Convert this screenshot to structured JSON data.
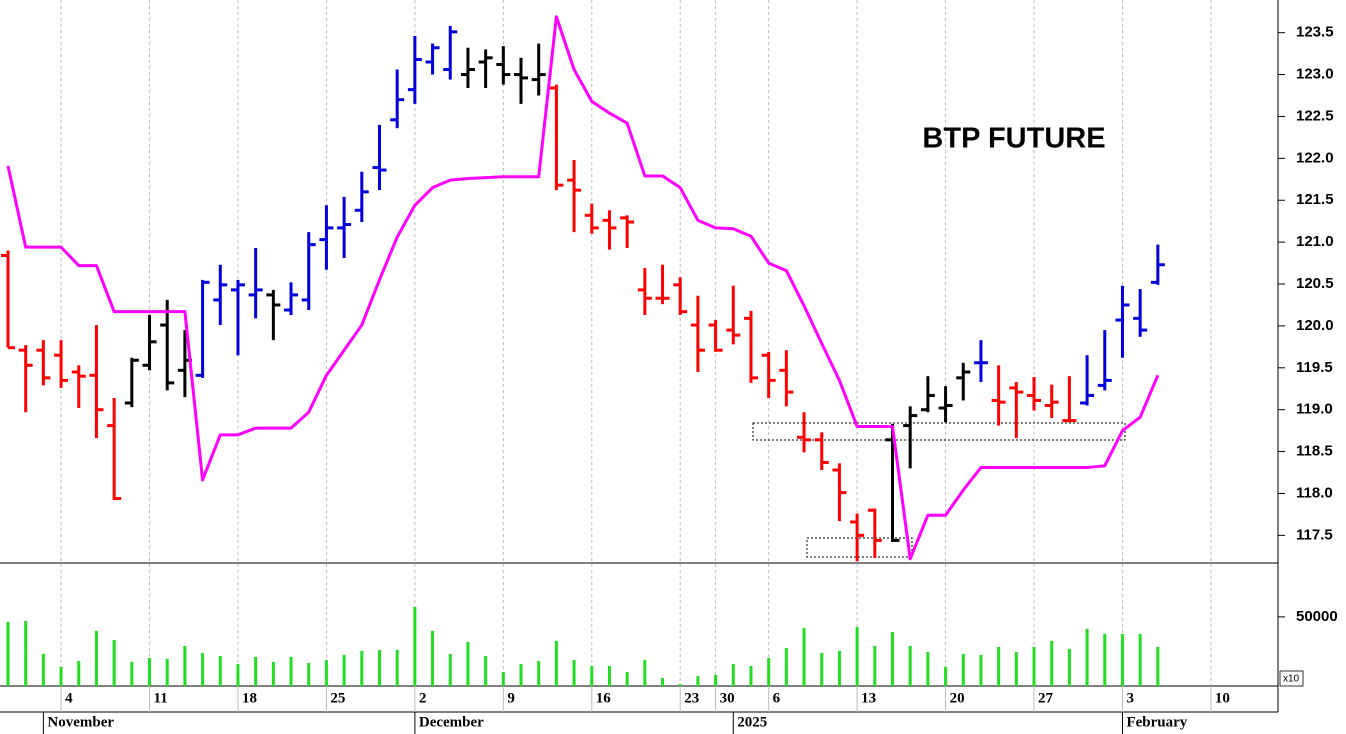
{
  "chart_data": [
    {
      "type": "ohlc",
      "title": "BTP FUTURE",
      "open": [
        120.84,
        119.71,
        119.71,
        119.65,
        119.45,
        119.41,
        118.81,
        119.08,
        119.53,
        120.01,
        119.47,
        119.41,
        120.31,
        120.43,
        120.37,
        120.37,
        120.19,
        120.31,
        121.03,
        121.17,
        121.38,
        121.89,
        122.46,
        122.82,
        123.15,
        123.06,
        123.0,
        123.15,
        123.12,
        123.0,
        122.94,
        122.84,
        121.74,
        121.32,
        121.26,
        121.29,
        120.43,
        120.33,
        120.49,
        120.01,
        120.01,
        119.95,
        120.09,
        119.65,
        119.47,
        118.67,
        118.64,
        118.28,
        117.66,
        117.8,
        118.64,
        118.81,
        119.0,
        119.02,
        119.38,
        119.56,
        119.11,
        119.26,
        119.17,
        119.05,
        118.87,
        119.08,
        119.29,
        120.07,
        120.09,
        120.52,
        null,
        null,
        null,
        null,
        null,
        null
      ],
      "high": [
        120.9,
        119.77,
        119.83,
        119.83,
        119.53,
        120.01,
        119.14,
        119.62,
        120.13,
        120.31,
        119.95,
        120.55,
        120.73,
        120.55,
        120.93,
        120.43,
        120.52,
        121.12,
        121.44,
        121.54,
        121.84,
        122.4,
        123.06,
        123.46,
        123.37,
        123.58,
        123.32,
        123.3,
        123.34,
        123.2,
        123.37,
        122.88,
        121.98,
        121.46,
        121.38,
        121.32,
        120.69,
        120.73,
        120.58,
        120.36,
        120.07,
        120.48,
        120.18,
        119.69,
        119.71,
        118.97,
        118.73,
        118.36,
        117.76,
        117.82,
        118.83,
        119.04,
        119.4,
        119.28,
        119.56,
        119.83,
        119.53,
        119.33,
        119.39,
        119.3,
        119.4,
        119.65,
        119.95,
        120.48,
        120.44,
        120.97,
        null,
        null,
        null,
        null,
        null,
        null
      ],
      "low": [
        119.74,
        118.97,
        119.29,
        119.26,
        119.02,
        118.66,
        117.92,
        119.03,
        119.47,
        119.23,
        119.15,
        119.38,
        120.01,
        119.65,
        120.09,
        119.83,
        120.13,
        120.19,
        120.67,
        120.81,
        121.24,
        121.62,
        122.36,
        122.65,
        123.0,
        122.94,
        122.84,
        122.84,
        122.88,
        122.65,
        122.75,
        121.62,
        121.12,
        121.1,
        120.91,
        120.93,
        120.13,
        120.26,
        120.13,
        119.45,
        119.69,
        119.78,
        119.32,
        119.14,
        119.04,
        118.49,
        118.28,
        117.67,
        117.19,
        117.23,
        117.42,
        118.3,
        118.97,
        118.85,
        119.11,
        119.33,
        118.81,
        118.66,
        118.99,
        118.9,
        118.85,
        119.05,
        119.23,
        119.62,
        119.87,
        120.49,
        null,
        null,
        null,
        null,
        null,
        null
      ],
      "close": [
        119.74,
        119.53,
        119.38,
        119.35,
        119.4,
        119.0,
        117.94,
        119.59,
        119.81,
        119.32,
        119.59,
        120.52,
        120.49,
        120.49,
        120.43,
        120.25,
        120.37,
        120.97,
        121.17,
        121.21,
        121.6,
        121.86,
        122.7,
        123.18,
        123.32,
        123.51,
        123.06,
        123.2,
        123.0,
        122.96,
        123.0,
        121.68,
        121.62,
        121.17,
        121.17,
        121.24,
        120.33,
        120.33,
        120.17,
        119.71,
        119.71,
        119.89,
        119.38,
        119.35,
        119.21,
        118.64,
        118.37,
        118.01,
        117.5,
        117.44,
        117.44,
        118.93,
        119.17,
        119.05,
        119.45,
        119.56,
        119.09,
        119.21,
        119.11,
        119.09,
        118.87,
        119.17,
        119.35,
        120.25,
        119.95,
        120.73,
        null,
        null,
        null,
        null,
        null,
        null
      ],
      "colors": [
        "#ff0000",
        "#ff0000",
        "#ff0000",
        "#ff0000",
        "#ff0000",
        "#ff0000",
        "#ff0000",
        "#000000",
        "#000000",
        "#000000",
        "#000000",
        "#0000dd",
        "#0000dd",
        "#0000dd",
        "#0000dd",
        "#000000",
        "#0000dd",
        "#0000dd",
        "#0000dd",
        "#0000dd",
        "#0000dd",
        "#0000dd",
        "#0000dd",
        "#0000dd",
        "#0000dd",
        "#0000dd",
        "#000000",
        "#000000",
        "#000000",
        "#000000",
        "#000000",
        "#ff0000",
        "#ff0000",
        "#ff0000",
        "#ff0000",
        "#ff0000",
        "#ff0000",
        "#ff0000",
        "#ff0000",
        "#ff0000",
        "#ff0000",
        "#ff0000",
        "#ff0000",
        "#ff0000",
        "#ff0000",
        "#ff0000",
        "#ff0000",
        "#ff0000",
        "#ff0000",
        "#ff0000",
        "#000000",
        "#000000",
        "#000000",
        "#000000",
        "#000000",
        "#0000dd",
        "#ff0000",
        "#ff0000",
        "#ff0000",
        "#ff0000",
        "#ff0000",
        "#0000dd",
        "#0000dd",
        "#0000dd",
        "#0000dd",
        "#0000dd",
        null,
        null,
        null,
        null,
        null,
        null
      ],
      "stop_line": {
        "color": "#ff00ff",
        "values": [
          121.91,
          120.94,
          120.94,
          120.94,
          120.72,
          120.72,
          120.17,
          120.17,
          120.17,
          120.17,
          120.17,
          118.16,
          118.7,
          118.7,
          118.78,
          118.78,
          118.78,
          118.97,
          119.41,
          119.71,
          120.01,
          120.55,
          121.06,
          121.44,
          121.65,
          121.74,
          121.76,
          121.77,
          121.78,
          121.78,
          121.78,
          123.69,
          123.06,
          122.68,
          122.54,
          122.42,
          121.79,
          121.79,
          121.65,
          121.26,
          121.17,
          121.16,
          121.07,
          120.75,
          120.66,
          120.24,
          119.79,
          119.35,
          118.8,
          118.8,
          118.8,
          117.22,
          117.74,
          117.74,
          118.04,
          118.31,
          118.31,
          118.31,
          118.31,
          118.31,
          118.31,
          118.31,
          118.33,
          118.75,
          118.91,
          119.41,
          null,
          null,
          null,
          null,
          null,
          null
        ]
      },
      "ylim": [
        117.17,
        123.89
      ],
      "yticks": [
        117.5,
        {
          "value": 118,
          "label": "118.0"
        },
        118.5,
        {
          "value": 119,
          "label": "119.0"
        },
        119.5,
        {
          "value": 120,
          "label": "120.0"
        },
        120.5,
        {
          "value": 121,
          "label": "121.0"
        },
        121.5,
        {
          "value": 122,
          "label": "122.0"
        },
        122.5,
        {
          "value": 123,
          "label": "123.0"
        },
        123.5
      ],
      "grid": true
    },
    {
      "type": "bar",
      "categories": [
        null,
        null,
        null,
        "4",
        null,
        null,
        null,
        null,
        "11",
        null,
        null,
        null,
        null,
        "18",
        null,
        null,
        null,
        null,
        "25",
        null,
        null,
        null,
        null,
        "2",
        null,
        null,
        null,
        null,
        "9",
        null,
        null,
        null,
        null,
        "16",
        null,
        null,
        null,
        null,
        "23",
        null,
        "30",
        null,
        null,
        "6",
        null,
        null,
        null,
        null,
        "13",
        null,
        null,
        null,
        null,
        "20",
        null,
        null,
        null,
        null,
        "27",
        null,
        null,
        null,
        null,
        "3",
        null,
        null,
        null,
        null,
        "10",
        null,
        null,
        null
      ],
      "month_labels": [
        {
          "label": "November",
          "category_index": 2
        },
        {
          "label": "December",
          "category_index": 23
        },
        {
          "label": "2025",
          "category_index": 41
        },
        {
          "label": "February",
          "category_index": 63
        }
      ],
      "values": [
        46400,
        47100,
        23200,
        13800,
        18100,
        39900,
        33300,
        17400,
        20300,
        19600,
        29000,
        23900,
        21700,
        15900,
        21000,
        17400,
        21000,
        16700,
        18800,
        22500,
        25400,
        26100,
        26100,
        57200,
        39900,
        23200,
        31900,
        21700,
        10100,
        15900,
        18100,
        32600,
        18800,
        14500,
        14500,
        10100,
        18800,
        5800,
        1400,
        7200,
        8000,
        15900,
        14500,
        20300,
        27500,
        42000,
        23900,
        25400,
        42700,
        29000,
        39100,
        29000,
        24600,
        13800,
        23200,
        22500,
        28300,
        24600,
        28300,
        32600,
        26800,
        41300,
        37700,
        37700,
        37700,
        28300,
        null,
        null,
        null,
        null,
        null,
        null
      ],
      "color": "#22dd22",
      "ylim": [
        0,
        89000
      ],
      "yticks": [
        50000
      ],
      "unit_label": "x10",
      "grid": true
    }
  ]
}
